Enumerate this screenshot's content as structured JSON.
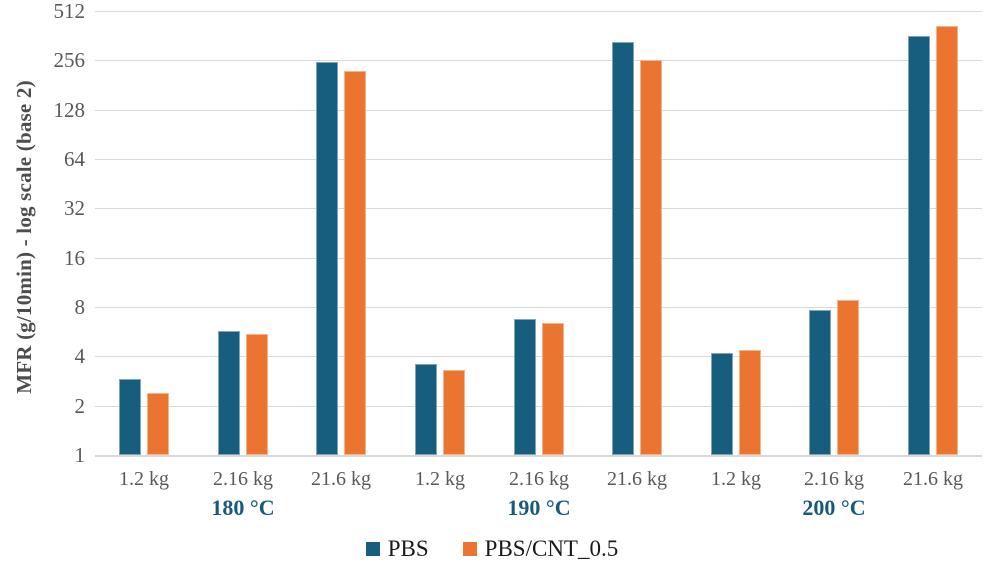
{
  "chart_data": {
    "type": "bar",
    "title": "",
    "ylabel": "MFR (g/10min) - log scale (base 2)",
    "xlabel": "",
    "y_scale": "log2",
    "ylim": [
      1,
      512
    ],
    "y_ticks": [
      512,
      256,
      128,
      64,
      32,
      16,
      8,
      4,
      2,
      1
    ],
    "grid": "horizontal",
    "legend_position": "bottom",
    "categories": [
      "1.2 kg",
      "2.16 kg",
      "21.6 kg",
      "1.2 kg",
      "2.16 kg",
      "21.6 kg",
      "1.2 kg",
      "2.16 kg",
      "21.6 kg"
    ],
    "group_labels": [
      {
        "label": "180 °C",
        "center_slot": 1
      },
      {
        "label": "190 °C",
        "center_slot": 4
      },
      {
        "label": "200 °C",
        "center_slot": 7
      }
    ],
    "series": [
      {
        "name": "PBS",
        "color": "#175e7e",
        "values": [
          2.9,
          5.7,
          250,
          3.6,
          6.8,
          330,
          4.2,
          7.7,
          360
        ]
      },
      {
        "name": "PBS/CNT_0.5",
        "color": "#ec7431",
        "values": [
          2.4,
          5.5,
          220,
          3.3,
          6.4,
          257,
          4.4,
          8.8,
          415
        ]
      }
    ],
    "colors": {
      "grid": "#d9d9d9",
      "tick_text": "#595959",
      "temp_label_text": "#195a7c",
      "axis_title_text": "#4d4d4d"
    }
  }
}
